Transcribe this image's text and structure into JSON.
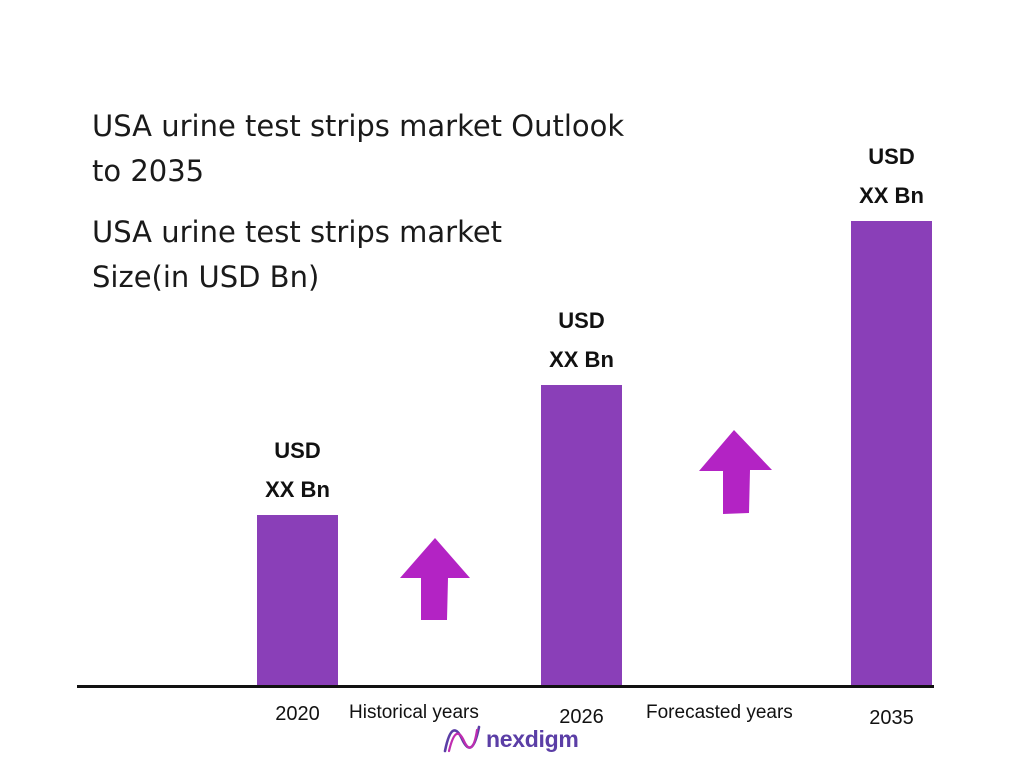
{
  "header": {
    "title_line1": "USA urine test strips market Outlook",
    "title_line2": "to 2035",
    "subtitle_line1": "USA urine test strips market",
    "subtitle_line2": "Size(in USD Bn)"
  },
  "chart_data": {
    "type": "bar",
    "categories": [
      "2020",
      "2026",
      "2035"
    ],
    "values": [
      1.0,
      1.75,
      2.7
    ],
    "value_labels": [
      {
        "line1": "USD",
        "line2": "XX Bn"
      },
      {
        "line1": "USD",
        "line2": "XX Bn"
      },
      {
        "line1": "USD",
        "line2": "XX Bn"
      }
    ],
    "annotations": [
      "Historical years",
      "Forecasted years"
    ],
    "bar_color": "#8a3fb8",
    "arrow_color": "#b323c4",
    "grid": false,
    "legend": "none"
  },
  "branding": {
    "logo_text": "nexdigm",
    "logo_color": "#5b3ea6",
    "logo_icon": "nexdigm-wave-icon"
  }
}
